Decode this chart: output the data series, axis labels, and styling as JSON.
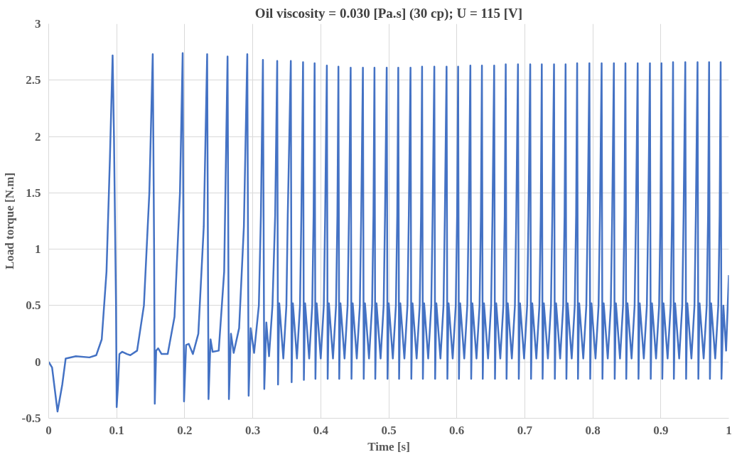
{
  "chart_data": {
    "type": "line",
    "title": "Oil viscosity = 0.030 [Pa.s] (30 cp); U = 115 [V]",
    "xlabel": "Time [s]",
    "ylabel": "Load torque [N.m]",
    "xlim": [
      0,
      1
    ],
    "xticks": [
      0,
      0.1,
      0.2,
      0.3,
      0.4,
      0.5,
      0.6,
      0.7,
      0.8,
      0.9,
      1
    ],
    "ylim": [
      -0.5,
      3
    ],
    "yticks": [
      -0.5,
      0,
      0.5,
      1,
      1.5,
      2,
      2.5,
      3
    ],
    "grid": true,
    "line_style": "solid",
    "series": [
      {
        "color": "#4472c4",
        "x": [
          0,
          0.005,
          0.013,
          0.02,
          0.025,
          0.04,
          0.06,
          0.07,
          0.078,
          0.085,
          0.09,
          0.094,
          0.096,
          0.099,
          0.1,
          0.102,
          0.104,
          0.108,
          0.115,
          0.12,
          0.13,
          0.14,
          0.148,
          0.153,
          0.155,
          0.156,
          0.158,
          0.161,
          0.166,
          0.175,
          0.185,
          0.193,
          0.197,
          0.199,
          0.202,
          0.206,
          0.212,
          0.22,
          0.228,
          0.233,
          0.235,
          0.238,
          0.241,
          0.25,
          0.258,
          0.263,
          0.265,
          0.268,
          0.272,
          0.28,
          0.287,
          0.292,
          0.294,
          0.297,
          0.302,
          0.309,
          0.312,
          0.315,
          0.317,
          0.32,
          0.324,
          0.329,
          0.333,
          0.336,
          0.3372,
          0.339,
          0.345,
          0.3495,
          0.3515,
          0.356,
          0.3572,
          0.359,
          0.365,
          0.3695,
          0.3715,
          0.374,
          0.3752,
          0.377,
          0.383,
          0.3875,
          0.3895,
          0.391,
          0.3922,
          0.394,
          0.4,
          0.4045,
          0.4065,
          0.409,
          0.4102,
          0.412,
          0.418,
          0.4225,
          0.4245,
          0.426,
          0.4272,
          0.429,
          0.435,
          0.4395,
          0.4415,
          0.444,
          0.4452,
          0.447,
          0.453,
          0.4575,
          0.4595,
          0.462,
          0.4632,
          0.465,
          0.471,
          0.4755,
          0.4775,
          0.479,
          0.4802,
          0.482,
          0.488,
          0.4925,
          0.4945,
          0.497,
          0.4982,
          0.5,
          0.506,
          0.5105,
          0.5125,
          0.514,
          0.5152,
          0.517,
          0.523,
          0.5275,
          0.5295,
          0.532,
          0.5332,
          0.535,
          0.541,
          0.5455,
          0.5475,
          0.549,
          0.5502,
          0.552,
          0.558,
          0.5625,
          0.5645,
          0.567,
          0.5682,
          0.57,
          0.576,
          0.5805,
          0.5825,
          0.585,
          0.5862,
          0.588,
          0.594,
          0.5985,
          0.6005,
          0.602,
          0.6032,
          0.605,
          0.611,
          0.6155,
          0.6175,
          0.62,
          0.6212,
          0.623,
          0.629,
          0.6335,
          0.6355,
          0.637,
          0.6382,
          0.64,
          0.646,
          0.6505,
          0.6525,
          0.655,
          0.6562,
          0.658,
          0.664,
          0.6685,
          0.6705,
          0.672,
          0.6732,
          0.675,
          0.681,
          0.6855,
          0.6875,
          0.69,
          0.6912,
          0.693,
          0.699,
          0.7035,
          0.7055,
          0.708,
          0.7092,
          0.711,
          0.717,
          0.7215,
          0.7235,
          0.725,
          0.7262,
          0.728,
          0.734,
          0.7385,
          0.7405,
          0.743,
          0.7442,
          0.746,
          0.752,
          0.7565,
          0.7585,
          0.76,
          0.7612,
          0.763,
          0.769,
          0.7735,
          0.7755,
          0.777,
          0.7782,
          0.78,
          0.786,
          0.7905,
          0.7925,
          0.795,
          0.7962,
          0.798,
          0.804,
          0.8085,
          0.8105,
          0.813,
          0.8142,
          0.816,
          0.822,
          0.8265,
          0.8285,
          0.831,
          0.8322,
          0.834,
          0.84,
          0.8445,
          0.8465,
          0.848,
          0.8492,
          0.851,
          0.857,
          0.8615,
          0.8635,
          0.866,
          0.8672,
          0.869,
          0.875,
          0.8795,
          0.8815,
          0.884,
          0.8852,
          0.887,
          0.893,
          0.8975,
          0.8995,
          0.901,
          0.9022,
          0.904,
          0.91,
          0.9145,
          0.9165,
          0.918,
          0.9192,
          0.921,
          0.927,
          0.9315,
          0.9335,
          0.936,
          0.9372,
          0.939,
          0.945,
          0.9495,
          0.9515,
          0.954,
          0.9552,
          0.957,
          0.963,
          0.9675,
          0.9695,
          0.971,
          0.9722,
          0.974,
          0.98,
          0.9845,
          0.9865,
          0.988,
          0.9892,
          0.992,
          0.996,
          1.0
        ],
        "values": [
          0,
          -0.05,
          -0.44,
          -0.2,
          0.03,
          0.05,
          0.04,
          0.06,
          0.2,
          0.8,
          1.8,
          2.72,
          2.0,
          0.5,
          -0.4,
          -0.2,
          0.07,
          0.09,
          0.07,
          0.06,
          0.1,
          0.5,
          1.5,
          2.73,
          1.0,
          -0.37,
          0.1,
          0.12,
          0.07,
          0.07,
          0.4,
          1.5,
          2.74,
          -0.35,
          0.15,
          0.16,
          0.07,
          0.25,
          1.2,
          2.73,
          -0.33,
          0.2,
          0.09,
          0.1,
          0.8,
          2.71,
          -0.33,
          0.25,
          0.08,
          0.3,
          1.2,
          2.73,
          -0.3,
          0.3,
          0.08,
          0.5,
          1.3,
          2.68,
          -0.24,
          0.35,
          0.05,
          0.5,
          1.3,
          2.67,
          -0.2,
          0.52,
          0.03,
          0.5,
          1.3,
          2.67,
          -0.18,
          0.52,
          0.03,
          0.5,
          1.3,
          2.66,
          -0.16,
          0.52,
          0.03,
          0.5,
          1.3,
          2.65,
          -0.15,
          0.52,
          0.03,
          0.5,
          1.3,
          2.63,
          -0.15,
          0.52,
          0.03,
          0.5,
          1.3,
          2.62,
          -0.15,
          0.52,
          0.03,
          0.5,
          1.3,
          2.61,
          -0.15,
          0.52,
          0.03,
          0.5,
          1.3,
          2.61,
          -0.15,
          0.52,
          0.03,
          0.5,
          1.3,
          2.61,
          -0.15,
          0.52,
          0.03,
          0.5,
          1.3,
          2.61,
          -0.15,
          0.52,
          0.03,
          0.5,
          1.3,
          2.61,
          -0.15,
          0.52,
          0.03,
          0.5,
          1.3,
          2.61,
          -0.15,
          0.52,
          0.03,
          0.5,
          1.3,
          2.62,
          -0.15,
          0.52,
          0.03,
          0.5,
          1.3,
          2.62,
          -0.15,
          0.52,
          0.03,
          0.5,
          1.3,
          2.62,
          -0.15,
          0.52,
          0.03,
          0.5,
          1.3,
          2.62,
          -0.15,
          0.52,
          0.03,
          0.5,
          1.3,
          2.63,
          -0.15,
          0.52,
          0.03,
          0.5,
          1.3,
          2.63,
          -0.15,
          0.52,
          0.03,
          0.5,
          1.3,
          2.63,
          -0.15,
          0.52,
          0.03,
          0.5,
          1.3,
          2.64,
          -0.15,
          0.52,
          0.03,
          0.5,
          1.3,
          2.64,
          -0.15,
          0.52,
          0.03,
          0.5,
          1.3,
          2.64,
          -0.15,
          0.52,
          0.03,
          0.5,
          1.3,
          2.64,
          -0.15,
          0.52,
          0.03,
          0.5,
          1.3,
          2.64,
          -0.15,
          0.52,
          0.03,
          0.5,
          1.3,
          2.64,
          -0.15,
          0.52,
          0.03,
          0.5,
          1.3,
          2.65,
          -0.15,
          0.52,
          0.03,
          0.5,
          1.3,
          2.65,
          -0.15,
          0.52,
          0.03,
          0.5,
          1.3,
          2.65,
          -0.15,
          0.52,
          0.03,
          0.5,
          1.3,
          2.65,
          -0.15,
          0.52,
          0.03,
          0.5,
          1.3,
          2.65,
          -0.15,
          0.52,
          0.03,
          0.5,
          1.3,
          2.65,
          -0.15,
          0.52,
          0.03,
          0.5,
          1.3,
          2.65,
          -0.15,
          0.52,
          0.03,
          0.5,
          1.3,
          2.65,
          -0.15,
          0.52,
          0.03,
          0.5,
          1.3,
          2.66,
          -0.15,
          0.52,
          0.03,
          0.5,
          1.3,
          2.66,
          -0.15,
          0.52,
          0.03,
          0.5,
          1.3,
          2.66,
          -0.15,
          0.52,
          0.03,
          0.5,
          1.3,
          2.66,
          -0.15,
          0.52,
          0.03,
          0.5,
          1.3,
          2.66,
          -0.15,
          0.5,
          0.1,
          0.77
        ]
      }
    ]
  }
}
